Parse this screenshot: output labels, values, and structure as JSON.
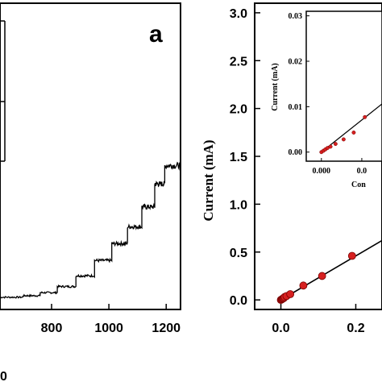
{
  "chart_data": [
    {
      "type": "line",
      "panel_label": "a",
      "x_tick_labels": [
        "800",
        "1000",
        "1200"
      ],
      "x_ticks": [
        800,
        1000,
        1200
      ],
      "xlim": [
        620,
        1250
      ],
      "ylim": [
        0,
        1
      ],
      "bottom_partial_label": "0",
      "series": [
        {
          "x": [
            620,
            700,
            760,
            820,
            885,
            950,
            1010,
            1065,
            1115,
            1160,
            1195,
            1250
          ],
          "y": [
            0.04,
            0.045,
            0.055,
            0.075,
            0.11,
            0.16,
            0.215,
            0.27,
            0.335,
            0.41,
            0.47,
            0.47
          ]
        }
      ]
    },
    {
      "type": "scatter",
      "ylabel": "Current (mA)",
      "y_tick_labels": [
        "0.0",
        "0.5",
        "1.0",
        "1.5",
        "2.0",
        "2.5",
        "3.0"
      ],
      "y_ticks": [
        0.0,
        0.5,
        1.0,
        1.5,
        2.0,
        2.5,
        3.0
      ],
      "x_tick_labels": [
        "0.0",
        "0.2"
      ],
      "x_ticks": [
        0.0,
        0.2
      ],
      "xlim": [
        -0.07,
        0.27
      ],
      "ylim": [
        -0.1,
        3.1
      ],
      "points": {
        "x": [
          0.0,
          0.002,
          0.004,
          0.006,
          0.008,
          0.01,
          0.015,
          0.025,
          0.06,
          0.11,
          0.19
        ],
        "y": [
          0.0,
          0.005,
          0.01,
          0.015,
          0.02,
          0.03,
          0.04,
          0.06,
          0.15,
          0.25,
          0.46
        ]
      },
      "fit_line": {
        "x": [
          0.0,
          0.27
        ],
        "y": [
          0.0,
          0.62
        ]
      },
      "marker_color": "#d62020",
      "line_color": "#000000"
    },
    {
      "type": "scatter",
      "role": "inset",
      "ylabel": "Current (mA)",
      "xlabel_partial": "Con",
      "y_tick_labels": [
        "0.00",
        "0.01",
        "0.02",
        "0.03"
      ],
      "y_ticks": [
        0.0,
        0.01,
        0.02,
        0.03
      ],
      "x_tick_labels": [
        "0.000",
        "0.0"
      ],
      "x_ticks": [
        0.0,
        0.004
      ],
      "xlim": [
        -0.0015,
        0.006
      ],
      "ylim": [
        -0.002,
        0.031
      ],
      "points": {
        "x": [
          0.0,
          0.0002,
          0.0004,
          0.0006,
          0.0009,
          0.0014,
          0.0022,
          0.0032,
          0.0043
        ],
        "y": [
          0.0,
          0.0003,
          0.0006,
          0.0009,
          0.0012,
          0.0018,
          0.0028,
          0.0043,
          0.0077
        ]
      },
      "fit_line": {
        "x": [
          0.0,
          0.006
        ],
        "y": [
          0.0,
          0.0106
        ]
      },
      "marker_color": "#d62020",
      "line_color": "#000000"
    }
  ]
}
